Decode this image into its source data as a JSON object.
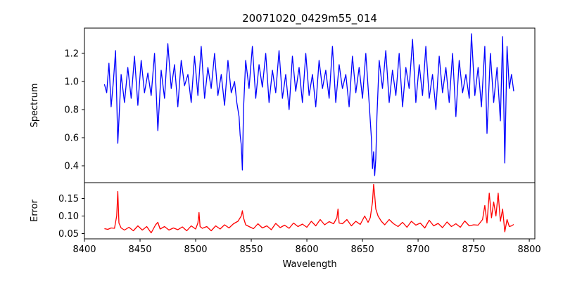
{
  "chart_data": [
    {
      "type": "line",
      "title": "20071020_0429m55_014",
      "ylabel": "Spectrum",
      "xlabel": "",
      "xlim": [
        8400,
        8805
      ],
      "ylim": [
        0.28,
        1.38
      ],
      "yticks": [
        0.4,
        0.6,
        0.8,
        1.0,
        1.2
      ],
      "ytick_labels": [
        "0.4",
        "0.6",
        "0.8",
        "1.0",
        "1.2"
      ],
      "grid": false,
      "series": [
        {
          "color": "#0000ff",
          "x": [
            8418,
            8420,
            8422,
            8424,
            8426,
            8428,
            8430,
            8433,
            8436,
            8439,
            8442,
            8445,
            8448,
            8451,
            8454,
            8457,
            8460,
            8463,
            8466,
            8469,
            8472,
            8475,
            8478,
            8481,
            8484,
            8487,
            8490,
            8493,
            8496,
            8499,
            8502,
            8505,
            8508,
            8511,
            8514,
            8517,
            8520,
            8523,
            8526,
            8529,
            8532,
            8535,
            8537,
            8539,
            8540,
            8541,
            8542,
            8543,
            8545,
            8548,
            8551,
            8554,
            8557,
            8560,
            8563,
            8566,
            8569,
            8572,
            8575,
            8578,
            8581,
            8584,
            8587,
            8590,
            8593,
            8596,
            8599,
            8602,
            8605,
            8608,
            8611,
            8614,
            8617,
            8620,
            8623,
            8626,
            8629,
            8632,
            8635,
            8638,
            8641,
            8644,
            8647,
            8650,
            8653,
            8656,
            8658,
            8659,
            8660,
            8661,
            8662,
            8663,
            8665,
            8668,
            8671,
            8674,
            8677,
            8680,
            8683,
            8686,
            8689,
            8692,
            8695,
            8698,
            8701,
            8704,
            8707,
            8710,
            8713,
            8716,
            8719,
            8722,
            8725,
            8728,
            8731,
            8734,
            8737,
            8740,
            8743,
            8746,
            8748,
            8751,
            8754,
            8757,
            8760,
            8762,
            8765,
            8768,
            8771,
            8774,
            8776,
            8778,
            8780,
            8782,
            8784,
            8786
          ],
          "y": [
            0.98,
            0.92,
            1.13,
            0.82,
            1.0,
            1.22,
            0.56,
            1.05,
            0.85,
            1.1,
            0.88,
            1.18,
            0.83,
            1.15,
            0.92,
            1.06,
            0.9,
            1.2,
            0.65,
            1.08,
            0.88,
            1.27,
            0.95,
            1.12,
            0.82,
            1.15,
            0.97,
            1.05,
            0.85,
            1.18,
            0.9,
            1.25,
            0.88,
            1.1,
            0.95,
            1.2,
            0.9,
            1.05,
            0.83,
            1.15,
            0.92,
            1.0,
            0.85,
            0.75,
            0.62,
            0.55,
            0.37,
            0.8,
            1.15,
            0.95,
            1.25,
            0.88,
            1.12,
            0.96,
            1.2,
            0.85,
            1.08,
            0.92,
            1.22,
            0.88,
            1.05,
            0.8,
            1.18,
            0.93,
            1.1,
            0.85,
            1.2,
            0.9,
            1.05,
            0.82,
            1.15,
            0.95,
            1.08,
            0.88,
            1.25,
            0.85,
            1.12,
            0.95,
            1.05,
            0.82,
            1.18,
            0.92,
            1.1,
            0.88,
            1.2,
            0.85,
            0.6,
            0.38,
            0.5,
            0.33,
            0.45,
            0.75,
            1.15,
            0.95,
            1.22,
            0.85,
            1.08,
            0.9,
            1.2,
            0.82,
            1.1,
            0.95,
            1.3,
            0.85,
            1.12,
            0.9,
            1.25,
            0.88,
            1.05,
            0.8,
            1.18,
            0.92,
            1.1,
            0.85,
            1.2,
            0.75,
            1.15,
            0.92,
            1.05,
            0.88,
            1.34,
            0.9,
            1.1,
            0.82,
            1.25,
            0.63,
            1.2,
            0.85,
            1.1,
            0.72,
            1.32,
            0.42,
            1.25,
            0.95,
            1.05,
            0.93
          ]
        }
      ]
    },
    {
      "type": "line",
      "title": "",
      "ylabel": "Error",
      "xlabel": "Wavelength",
      "xlim": [
        8400,
        8805
      ],
      "ylim": [
        0.035,
        0.195
      ],
      "yticks": [
        0.05,
        0.1,
        0.15
      ],
      "ytick_labels": [
        "0.05",
        "0.10",
        "0.15"
      ],
      "xticks": [
        8400,
        8450,
        8500,
        8550,
        8600,
        8650,
        8700,
        8750,
        8800
      ],
      "xtick_labels": [
        "8400",
        "8450",
        "8500",
        "8550",
        "8600",
        "8650",
        "8700",
        "8750",
        "8800"
      ],
      "grid": false,
      "series": [
        {
          "color": "#ff0000",
          "x": [
            8418,
            8421,
            8424,
            8427,
            8429,
            8430,
            8431,
            8433,
            8436,
            8440,
            8444,
            8448,
            8452,
            8456,
            8460,
            8464,
            8466,
            8468,
            8472,
            8476,
            8480,
            8484,
            8488,
            8492,
            8496,
            8500,
            8502,
            8503,
            8504,
            8506,
            8510,
            8514,
            8518,
            8522,
            8526,
            8530,
            8534,
            8538,
            8541,
            8542,
            8543,
            8545,
            8548,
            8552,
            8556,
            8560,
            8564,
            8568,
            8572,
            8576,
            8580,
            8584,
            8588,
            8592,
            8596,
            8600,
            8604,
            8608,
            8612,
            8616,
            8620,
            8624,
            8627,
            8628,
            8629,
            8632,
            8636,
            8640,
            8644,
            8648,
            8652,
            8655,
            8657,
            8659,
            8660,
            8661,
            8662,
            8664,
            8667,
            8670,
            8674,
            8678,
            8682,
            8686,
            8690,
            8694,
            8698,
            8702,
            8706,
            8710,
            8714,
            8718,
            8722,
            8726,
            8730,
            8734,
            8738,
            8742,
            8746,
            8750,
            8754,
            8758,
            8760,
            8762,
            8764,
            8766,
            8768,
            8770,
            8772,
            8774,
            8776,
            8778,
            8780,
            8782,
            8784,
            8786
          ],
          "y": [
            0.064,
            0.062,
            0.066,
            0.065,
            0.1,
            0.17,
            0.08,
            0.066,
            0.06,
            0.068,
            0.058,
            0.072,
            0.06,
            0.07,
            0.052,
            0.075,
            0.082,
            0.063,
            0.07,
            0.06,
            0.066,
            0.061,
            0.069,
            0.058,
            0.072,
            0.063,
            0.08,
            0.11,
            0.07,
            0.065,
            0.07,
            0.058,
            0.072,
            0.063,
            0.075,
            0.066,
            0.078,
            0.085,
            0.1,
            0.115,
            0.095,
            0.075,
            0.07,
            0.064,
            0.078,
            0.066,
            0.072,
            0.061,
            0.079,
            0.067,
            0.074,
            0.065,
            0.08,
            0.07,
            0.077,
            0.068,
            0.085,
            0.072,
            0.09,
            0.075,
            0.084,
            0.078,
            0.095,
            0.12,
            0.08,
            0.078,
            0.09,
            0.072,
            0.085,
            0.076,
            0.1,
            0.082,
            0.095,
            0.14,
            0.19,
            0.16,
            0.12,
            0.1,
            0.085,
            0.075,
            0.09,
            0.078,
            0.07,
            0.082,
            0.068,
            0.085,
            0.074,
            0.08,
            0.066,
            0.088,
            0.072,
            0.079,
            0.067,
            0.083,
            0.07,
            0.078,
            0.068,
            0.086,
            0.072,
            0.075,
            0.074,
            0.09,
            0.13,
            0.08,
            0.165,
            0.095,
            0.14,
            0.1,
            0.165,
            0.085,
            0.12,
            0.055,
            0.09,
            0.07,
            0.072,
            0.076
          ]
        }
      ]
    }
  ]
}
